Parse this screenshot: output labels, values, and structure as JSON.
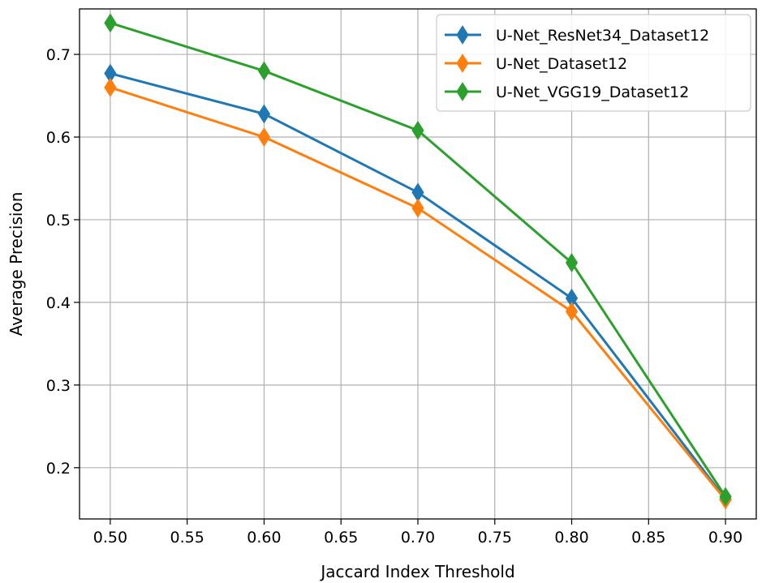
{
  "chart_data": {
    "type": "line",
    "title": "",
    "xlabel": "Jaccard Index Threshold",
    "ylabel": "Average Precision",
    "x": [
      0.5,
      0.6,
      0.7,
      0.8,
      0.9
    ],
    "xlim": [
      0.48,
      0.92
    ],
    "ylim": [
      0.138,
      0.755
    ],
    "xticks": [
      "0.50",
      "0.55",
      "0.60",
      "0.65",
      "0.70",
      "0.75",
      "0.80",
      "0.85",
      "0.90"
    ],
    "yticks": [
      "0.2",
      "0.3",
      "0.4",
      "0.5",
      "0.6",
      "0.7"
    ],
    "grid": true,
    "legend_position": "top-right",
    "marker": "thin-diamond",
    "series": [
      {
        "name": "U-Net_ResNet34_Dataset12",
        "color": "#1f77b4",
        "values": [
          0.677,
          0.628,
          0.533,
          0.405,
          0.162
        ]
      },
      {
        "name": "U-Net_Dataset12",
        "color": "#ff7f0e",
        "values": [
          0.66,
          0.6,
          0.514,
          0.389,
          0.161
        ]
      },
      {
        "name": "U-Net_VGG19_Dataset12",
        "color": "#2ca02c",
        "values": [
          0.738,
          0.68,
          0.608,
          0.448,
          0.165
        ]
      }
    ]
  }
}
